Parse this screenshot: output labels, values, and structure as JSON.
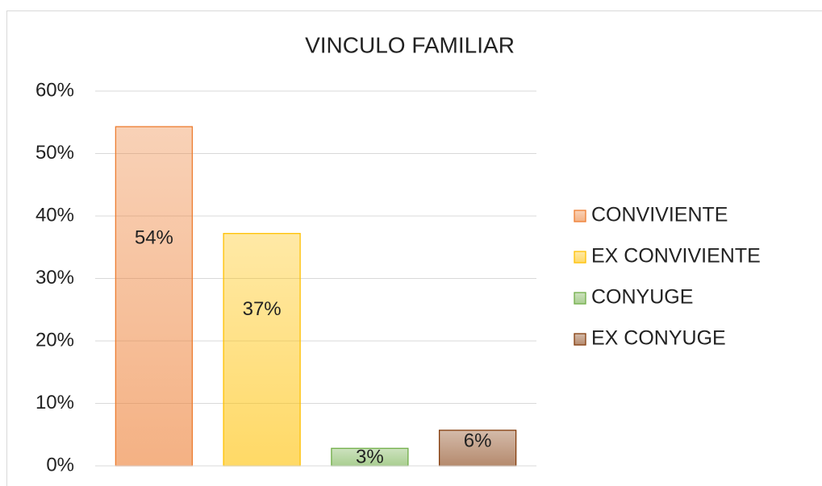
{
  "chart_data": {
    "type": "bar",
    "title": "VINCULO FAMILIAR",
    "series": [
      {
        "name": "CONVIVIENTE",
        "color": "#ed7d31",
        "values": [
          54.3
        ],
        "value_labels": [
          "54%"
        ]
      },
      {
        "name": "EX CONVIVIENTE",
        "color": "#ffc000",
        "values": [
          37.2
        ],
        "value_labels": [
          "37%"
        ]
      },
      {
        "name": "CONYUGE",
        "color": "#70ad47",
        "values": [
          2.8
        ],
        "value_labels": [
          "3%"
        ]
      },
      {
        "name": "EX CONYUGE",
        "color": "#843c0c",
        "values": [
          5.7
        ],
        "value_labels": [
          "6%"
        ]
      }
    ],
    "ylim": [
      0,
      60
    ],
    "yticks": [
      {
        "value": 0,
        "label": "0%"
      },
      {
        "value": 10,
        "label": "10%"
      },
      {
        "value": 20,
        "label": "20%"
      },
      {
        "value": 30,
        "label": "30%"
      },
      {
        "value": 40,
        "label": "40%"
      },
      {
        "value": 50,
        "label": "50%"
      },
      {
        "value": 60,
        "label": "60%"
      }
    ],
    "grid": true,
    "legend": "right"
  }
}
